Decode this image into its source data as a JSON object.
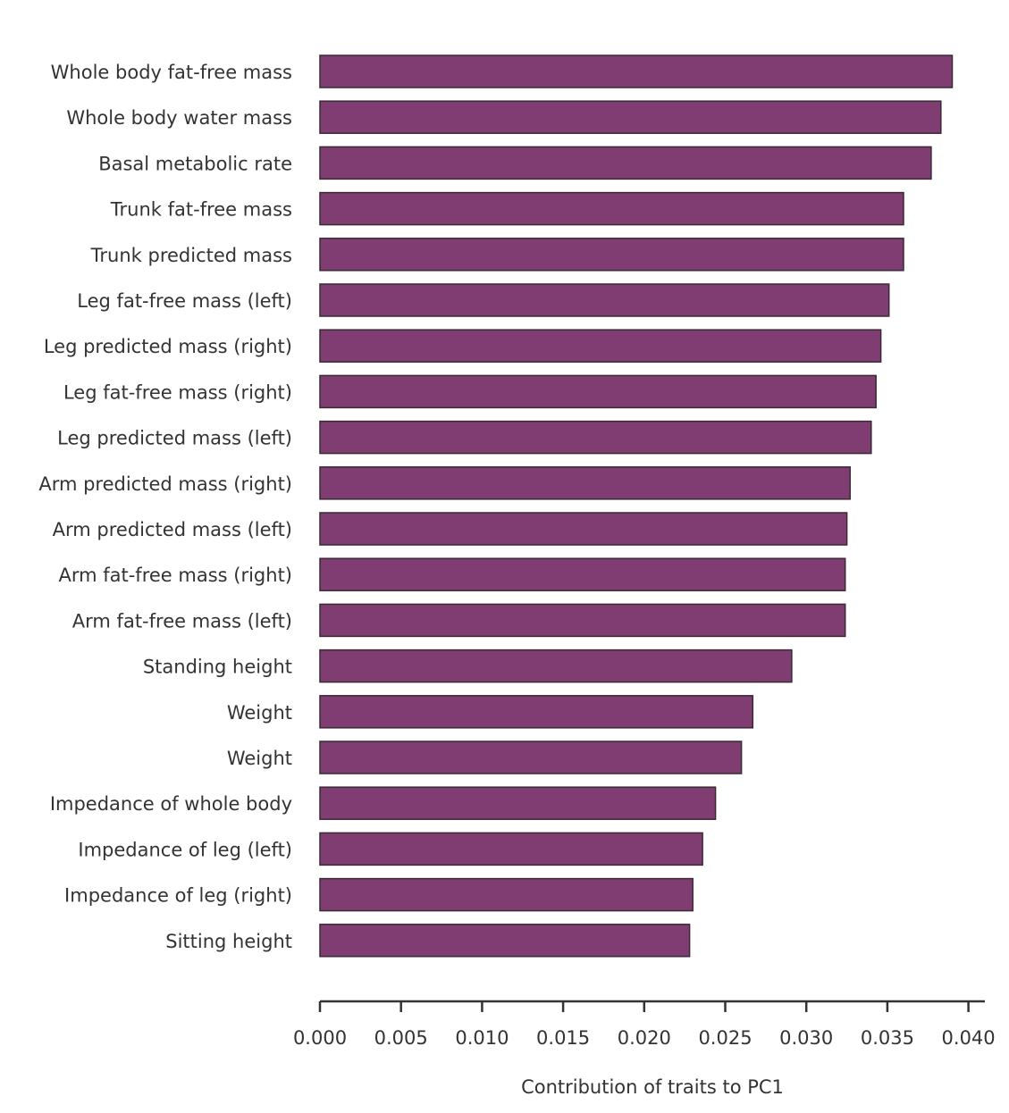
{
  "chart_data": {
    "type": "bar",
    "orientation": "horizontal",
    "title": "",
    "xlabel": "Contribution of traits to PC1",
    "ylabel": "",
    "xlim": [
      0,
      0.041
    ],
    "xticks": [
      0.0,
      0.005,
      0.01,
      0.015,
      0.02,
      0.025,
      0.03,
      0.035,
      0.04
    ],
    "xtick_labels": [
      "0.000",
      "0.005",
      "0.010",
      "0.015",
      "0.020",
      "0.025",
      "0.030",
      "0.035",
      "0.040"
    ],
    "grid": false,
    "categories": [
      "Whole body fat-free mass",
      "Whole body water mass",
      "Basal metabolic rate",
      "Trunk fat-free mass",
      "Trunk predicted mass",
      "Leg fat-free mass (left)",
      "Leg predicted mass (right)",
      "Leg fat-free mass (right)",
      "Leg predicted mass (left)",
      "Arm predicted mass (right)",
      "Arm predicted mass (left)",
      "Arm fat-free mass (right)",
      "Arm fat-free mass (left)",
      "Standing height",
      "Weight",
      "Weight",
      "Impedance of whole body",
      "Impedance of leg (left)",
      "Impedance of leg (right)",
      "Sitting height"
    ],
    "values": [
      0.039,
      0.0383,
      0.0377,
      0.036,
      0.036,
      0.0351,
      0.0346,
      0.0343,
      0.034,
      0.0327,
      0.0325,
      0.0324,
      0.0324,
      0.0291,
      0.0267,
      0.026,
      0.0244,
      0.0236,
      0.023,
      0.0228
    ],
    "colors": {
      "bar_fill": "#7f3d71",
      "bar_edge": "#3a2a35",
      "text": "#333333",
      "axis": "#333333"
    }
  }
}
